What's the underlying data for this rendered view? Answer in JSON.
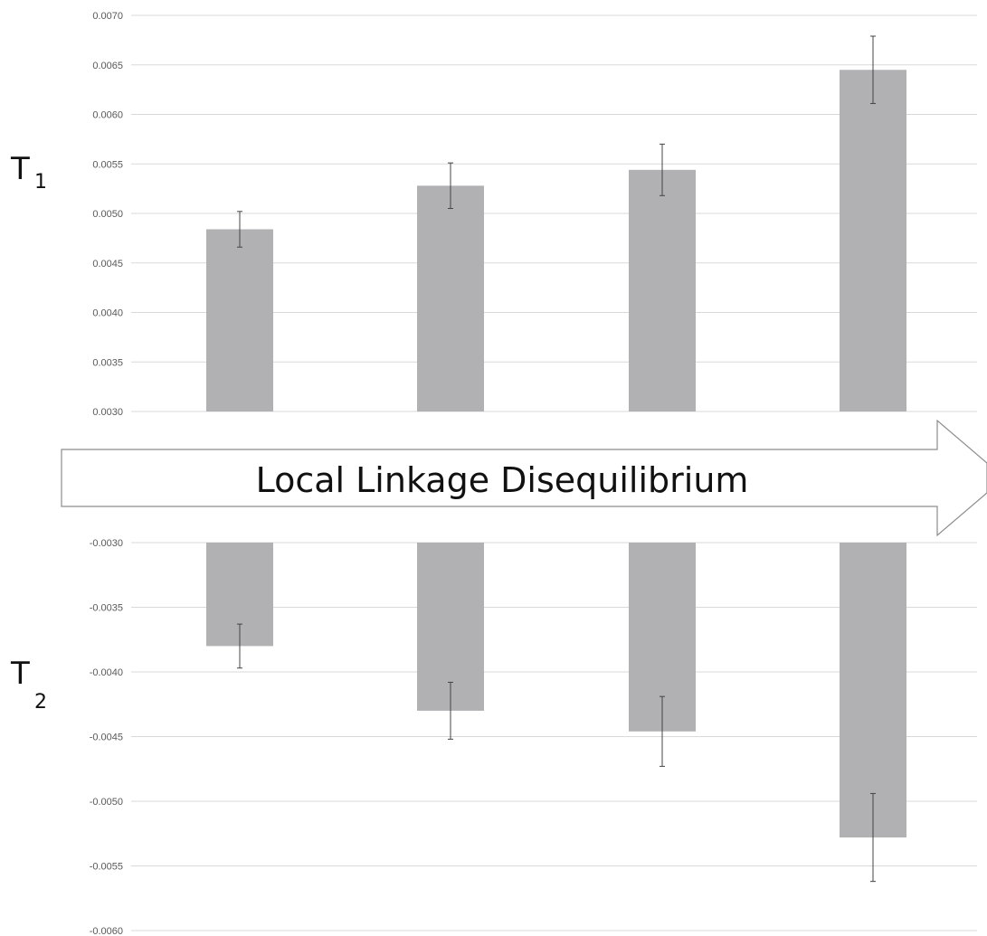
{
  "chart_data": [
    {
      "type": "bar",
      "label_main": "T",
      "label_sub": "1",
      "yticks": [
        "0.0070",
        "0.0065",
        "0.0060",
        "0.0055",
        "0.0050",
        "0.0045",
        "0.0040",
        "0.0035",
        "0.0030"
      ],
      "ylim": [
        0.003,
        0.007
      ],
      "values": [
        0.00484,
        0.00528,
        0.00544,
        0.00645
      ],
      "errors": [
        0.00018,
        0.00023,
        0.00026,
        0.00034
      ],
      "grid": true
    },
    {
      "type": "bar",
      "label_main": "T",
      "label_sub": "2",
      "yticks": [
        "-0.0030",
        "-0.0035",
        "-0.0040",
        "-0.0045",
        "-0.0050",
        "-0.0055",
        "-0.0060"
      ],
      "ylim": [
        -0.006,
        -0.003
      ],
      "values": [
        -0.0038,
        -0.0043,
        -0.00446,
        -0.00528
      ],
      "errors": [
        0.00017,
        0.00022,
        0.00027,
        0.00034
      ],
      "grid": true
    }
  ],
  "arrow": {
    "label": "Local Linkage Disequilibrium"
  },
  "colors": {
    "bar": "#b1b1b4",
    "grid": "#d9d9d9",
    "error": "#444444"
  }
}
